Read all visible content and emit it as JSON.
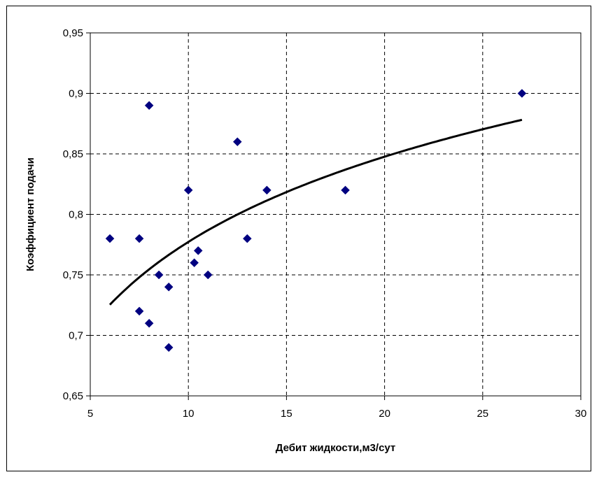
{
  "chart_data": {
    "type": "scatter",
    "title": "",
    "xlabel": "Дебит жидкости,м3/сут",
    "ylabel": "Коэффициент подачи",
    "xlim": [
      5,
      30
    ],
    "ylim": [
      0.65,
      0.95
    ],
    "x_ticks": [
      5,
      10,
      15,
      20,
      25,
      30
    ],
    "y_ticks": [
      0.65,
      0.7,
      0.75,
      0.8,
      0.85,
      0.9,
      0.95
    ],
    "x_tick_labels": [
      "5",
      "10",
      "15",
      "20",
      "25",
      "30"
    ],
    "y_tick_labels": [
      "0,65",
      "0,7",
      "0,75",
      "0,8",
      "0,85",
      "0,9",
      "0,95"
    ],
    "grid": true,
    "legend": "none",
    "series": [
      {
        "marker": "diamond",
        "color": "#000080",
        "points": [
          [
            6,
            0.78
          ],
          [
            7.5,
            0.78
          ],
          [
            7.5,
            0.72
          ],
          [
            8,
            0.89
          ],
          [
            8,
            0.71
          ],
          [
            8.5,
            0.75
          ],
          [
            9,
            0.74
          ],
          [
            9,
            0.69
          ],
          [
            10,
            0.82
          ],
          [
            10.3,
            0.76
          ],
          [
            10.5,
            0.77
          ],
          [
            11,
            0.75
          ],
          [
            12.5,
            0.86
          ],
          [
            13,
            0.78
          ],
          [
            14,
            0.82
          ],
          [
            18,
            0.82
          ],
          [
            27,
            0.9
          ]
        ]
      }
    ],
    "trendline": {
      "type": "logarithmic",
      "color": "#000000",
      "points": [
        [
          6,
          0.726
        ],
        [
          7.5,
          0.747
        ],
        [
          10,
          0.777
        ],
        [
          12.5,
          0.8
        ],
        [
          15,
          0.819
        ],
        [
          20,
          0.848
        ],
        [
          25,
          0.87
        ],
        [
          27,
          0.878
        ]
      ]
    }
  }
}
